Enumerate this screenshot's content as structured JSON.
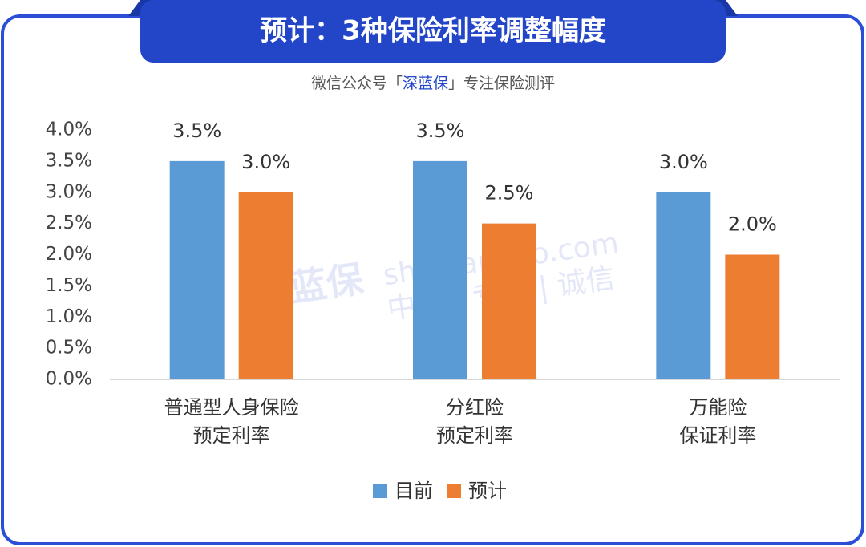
{
  "chart_data": {
    "type": "bar",
    "title": "预计：3种保险利率调整幅度",
    "subtitle_parts": [
      "微信公众号「",
      "深蓝保",
      "」专注保险测评"
    ],
    "watermark": [
      "深蓝保",
      "shenlanbao.com",
      "中立 | 专业 | 诚信"
    ],
    "categories": [
      [
        "普通型人身保险",
        "预定利率"
      ],
      [
        "分红险",
        "预定利率"
      ],
      [
        "万能险",
        "保证利率"
      ]
    ],
    "series": [
      {
        "name": "目前",
        "color": "#5b9bd5",
        "values": [
          3.5,
          3.5,
          3.0
        ],
        "value_labels": [
          "3.5%",
          "3.5%",
          "3.0%"
        ]
      },
      {
        "name": "预计",
        "color": "#ed7d31",
        "values": [
          3.0,
          2.5,
          2.0
        ],
        "value_labels": [
          "3.0%",
          "2.5%",
          "2.0%"
        ]
      }
    ],
    "ylim": [
      0,
      4
    ],
    "yticks": [
      {
        "value": 0,
        "label": "0.0%"
      },
      {
        "value": 0.5,
        "label": "0.5%"
      },
      {
        "value": 1,
        "label": "1.0%"
      },
      {
        "value": 1.5,
        "label": "1.5%"
      },
      {
        "value": 2,
        "label": "2.0%"
      },
      {
        "value": 2.5,
        "label": "2.5%"
      },
      {
        "value": 3,
        "label": "3.0%"
      },
      {
        "value": 3.5,
        "label": "3.5%"
      },
      {
        "value": 4,
        "label": "4.0%"
      }
    ]
  }
}
